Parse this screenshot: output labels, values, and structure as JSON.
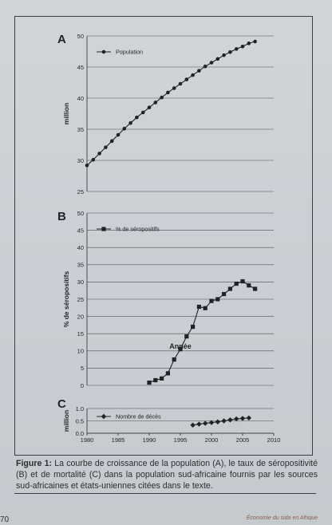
{
  "figure": {
    "caption_label": "Figure 1:",
    "caption_text": " La courbe de croissance de la population (A), le taux de séropositivité (B) et de mortalité (C) dans la population sud-africaine fournis par les sources sud-africaines et états-uniennes citées dans le texte."
  },
  "page": {
    "number": "70",
    "running_footer": "Économie du sida en Afrique"
  },
  "chart_data": [
    {
      "panel_letter": "A",
      "type": "line",
      "ylabel": "million",
      "ylim": [
        25,
        50
      ],
      "yticks": [
        25,
        30,
        35,
        40,
        45,
        50
      ],
      "xlim": [
        1980,
        2010
      ],
      "grid": true,
      "legend_position": "top-left",
      "series": [
        {
          "name": "Population",
          "marker": "circle",
          "x": [
            1980,
            1981,
            1982,
            1983,
            1984,
            1985,
            1986,
            1987,
            1988,
            1989,
            1990,
            1991,
            1992,
            1993,
            1994,
            1995,
            1996,
            1997,
            1998,
            1999,
            2000,
            2001,
            2002,
            2003,
            2004,
            2005,
            2006,
            2007
          ],
          "y": [
            29.2,
            30.1,
            31.1,
            32.1,
            33.1,
            34.1,
            35.1,
            36.0,
            36.9,
            37.7,
            38.5,
            39.3,
            40.1,
            40.9,
            41.6,
            42.3,
            43.0,
            43.7,
            44.4,
            45.1,
            45.7,
            46.3,
            46.9,
            47.4,
            47.9,
            48.3,
            48.8,
            49.1
          ]
        }
      ]
    },
    {
      "panel_letter": "B",
      "type": "line",
      "ylabel": "% de séropositifs",
      "ylim": [
        0,
        50
      ],
      "yticks": [
        0,
        5,
        10,
        15,
        20,
        25,
        30,
        35,
        40,
        45,
        50
      ],
      "xlim": [
        1980,
        2010
      ],
      "grid": true,
      "legend_position": "top-left",
      "series": [
        {
          "name": "% de séropositifs",
          "marker": "square",
          "x": [
            1990,
            1991,
            1992,
            1993,
            1994,
            1995,
            1996,
            1997,
            1998,
            1999,
            2000,
            2001,
            2002,
            2003,
            2004,
            2005,
            2006,
            2007
          ],
          "y": [
            0.8,
            1.5,
            2.0,
            3.5,
            7.5,
            10.5,
            14.2,
            17.0,
            22.8,
            22.4,
            24.5,
            25.0,
            26.5,
            28.0,
            29.5,
            30.2,
            29.0,
            28.0
          ]
        }
      ]
    },
    {
      "panel_letter": "C",
      "type": "line",
      "ylabel": "million",
      "ylim": [
        0,
        1.0
      ],
      "yticks": [
        0.0,
        0.5,
        1.0
      ],
      "ytick_labels": [
        "0.0",
        "0.5",
        "1.0"
      ],
      "xlim": [
        1980,
        2010
      ],
      "xticks": [
        1980,
        1985,
        1990,
        1995,
        2000,
        2005,
        2010
      ],
      "xlabel": "Année",
      "grid": true,
      "legend_position": "top-left",
      "series": [
        {
          "name": "Nombre de décès",
          "marker": "diamond",
          "x": [
            1997,
            1998,
            1999,
            2000,
            2001,
            2002,
            2003,
            2004,
            2005,
            2006
          ],
          "y": [
            0.33,
            0.37,
            0.4,
            0.43,
            0.46,
            0.5,
            0.54,
            0.58,
            0.6,
            0.62
          ]
        }
      ]
    }
  ]
}
